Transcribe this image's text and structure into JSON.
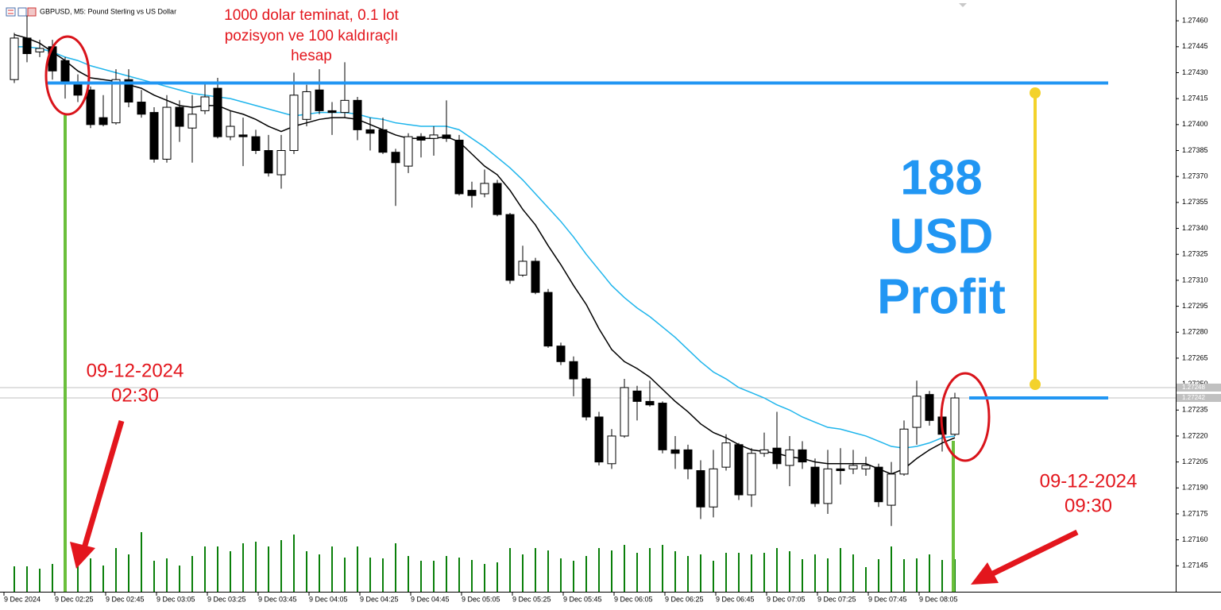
{
  "header": {
    "title": "GBPUSD, M5:  Pound Sterling vs US Dollar"
  },
  "chart_data": {
    "type": "candlestick",
    "categories": [
      "9 Dec 2024",
      null,
      null,
      null,
      "9 Dec 02:25",
      null,
      null,
      null,
      "9 Dec 02:45",
      null,
      null,
      null,
      "9 Dec 03:05",
      null,
      null,
      null,
      "9 Dec 03:25",
      null,
      null,
      null,
      "9 Dec 03:45",
      null,
      null,
      null,
      "9 Dec 04:05",
      null,
      null,
      null,
      "9 Dec 04:25",
      null,
      null,
      null,
      "9 Dec 04:45",
      null,
      null,
      null,
      "9 Dec 05:05",
      null,
      null,
      null,
      "9 Dec 05:25",
      null,
      null,
      null,
      "9 Dec 05:45",
      null,
      null,
      null,
      "9 Dec 06:05",
      null,
      null,
      null,
      "9 Dec 06:25",
      null,
      null,
      null,
      "9 Dec 06:45",
      null,
      null,
      null,
      "9 Dec 07:05",
      null,
      null,
      null,
      "9 Dec 07:25",
      null,
      null,
      null,
      "9 Dec 07:45",
      null,
      null,
      null,
      "9 Dec 08:05",
      null,
      null
    ],
    "open": [
      1.27426,
      1.2745,
      1.27442,
      1.27445,
      1.27437,
      1.27423,
      1.2742,
      1.27404,
      1.27401,
      1.27426,
      1.27413,
      1.27407,
      1.2738,
      1.2741,
      1.27398,
      1.27408,
      1.27421,
      1.27393,
      1.27394,
      1.27393,
      1.27385,
      1.27371,
      1.27385,
      1.27403,
      1.2742,
      1.27408,
      1.27407,
      1.27414,
      1.27397,
      1.27397,
      1.27384,
      1.27376,
      1.27393,
      1.27392,
      1.27394,
      1.27391,
      1.27362,
      1.2736,
      1.27366,
      1.27348,
      1.27313,
      1.27321,
      1.27303,
      1.27272,
      1.27263,
      1.27253,
      1.27231,
      1.27204,
      1.2722,
      1.27246,
      1.2724,
      1.27239,
      1.27212,
      1.27212,
      1.272,
      1.27179,
      1.27202,
      1.27215,
      1.27186,
      1.2721,
      1.27213,
      1.27203,
      1.27212,
      1.27202,
      1.27181,
      1.27201,
      1.27201,
      1.27201,
      1.27202,
      1.2718,
      1.27198,
      1.27225,
      1.27244,
      1.27231,
      1.27221
    ],
    "high": [
      1.27453,
      1.27463,
      1.27449,
      1.27449,
      1.27439,
      1.27429,
      1.27422,
      1.27417,
      1.27432,
      1.27432,
      1.2742,
      1.2741,
      1.27417,
      1.27414,
      1.27417,
      1.27424,
      1.27427,
      1.27408,
      1.27404,
      1.27397,
      1.27394,
      1.27394,
      1.2743,
      1.27423,
      1.27432,
      1.27413,
      1.27436,
      1.27416,
      1.27404,
      1.27404,
      1.27386,
      1.27395,
      1.27395,
      1.27399,
      1.27414,
      1.27394,
      1.27367,
      1.27374,
      1.27368,
      1.27349,
      1.2733,
      1.27323,
      1.27305,
      1.27274,
      1.27266,
      1.27254,
      1.27234,
      1.27224,
      1.27253,
      1.27249,
      1.27252,
      1.2724,
      1.2722,
      1.27215,
      1.27206,
      1.27212,
      1.27221,
      1.27216,
      1.27213,
      1.27222,
      1.27234,
      1.2722,
      1.27217,
      1.27207,
      1.27212,
      1.27213,
      1.27212,
      1.27208,
      1.27204,
      1.27205,
      1.27229,
      1.27252,
      1.27246,
      1.27234,
      1.27245
    ],
    "low": [
      1.27424,
      1.27436,
      1.27439,
      1.27426,
      1.27415,
      1.27413,
      1.27398,
      1.27399,
      1.274,
      1.2741,
      1.27404,
      1.27378,
      1.27378,
      1.2739,
      1.27378,
      1.27406,
      1.27392,
      1.27391,
      1.27376,
      1.27383,
      1.2737,
      1.27363,
      1.27383,
      1.27399,
      1.27406,
      1.27394,
      1.27404,
      1.27391,
      1.27385,
      1.27383,
      1.27353,
      1.27372,
      1.27381,
      1.27382,
      1.2739,
      1.27359,
      1.27352,
      1.27358,
      1.27347,
      1.27308,
      1.27312,
      1.27302,
      1.27271,
      1.27261,
      1.27243,
      1.27229,
      1.27203,
      1.27201,
      1.27219,
      1.27229,
      1.27237,
      1.2721,
      1.27201,
      1.27195,
      1.27172,
      1.27173,
      1.272,
      1.27183,
      1.27179,
      1.27208,
      1.27201,
      1.27191,
      1.27201,
      1.27179,
      1.27175,
      1.27192,
      1.27198,
      1.27197,
      1.27179,
      1.27168,
      1.27197,
      1.27215,
      1.27226,
      1.27211,
      1.2722
    ],
    "close": [
      1.2745,
      1.27441,
      1.27444,
      1.27431,
      1.27425,
      1.27417,
      1.274,
      1.274,
      1.27426,
      1.27413,
      1.27406,
      1.2738,
      1.2741,
      1.27399,
      1.27406,
      1.27416,
      1.27393,
      1.27399,
      1.27393,
      1.27385,
      1.27372,
      1.27385,
      1.27417,
      1.27419,
      1.27408,
      1.27407,
      1.27414,
      1.27397,
      1.27395,
      1.27384,
      1.27378,
      1.27393,
      1.27391,
      1.27394,
      1.27392,
      1.2736,
      1.27359,
      1.27366,
      1.27348,
      1.2731,
      1.27321,
      1.27303,
      1.27272,
      1.27263,
      1.27253,
      1.27231,
      1.27205,
      1.2722,
      1.27248,
      1.2724,
      1.27238,
      1.27212,
      1.2721,
      1.27201,
      1.27179,
      1.27201,
      1.27216,
      1.27186,
      1.2721,
      1.27212,
      1.27204,
      1.27212,
      1.27205,
      1.27181,
      1.27201,
      1.272,
      1.27203,
      1.27203,
      1.27182,
      1.27198,
      1.27224,
      1.27243,
      1.27229,
      1.27221,
      1.27242
    ],
    "volume": [
      32,
      32,
      29,
      35,
      47,
      37,
      42,
      33,
      55,
      47,
      75,
      39,
      42,
      33,
      45,
      57,
      57,
      51,
      61,
      63,
      57,
      65,
      72,
      51,
      47,
      57,
      43,
      57,
      43,
      42,
      61,
      45,
      39,
      39,
      45,
      43,
      40,
      35,
      37,
      55,
      47,
      55,
      52,
      42,
      39,
      45,
      55,
      52,
      59,
      49,
      55,
      59,
      51,
      45,
      47,
      39,
      49,
      49,
      47,
      49,
      55,
      51,
      41,
      47,
      42,
      55,
      47,
      31,
      41,
      57,
      41,
      42,
      47,
      40,
      41
    ],
    "ma": [
      {
        "color": "#000000",
        "values": [
          1.27452,
          1.2745,
          1.27447,
          1.27442,
          1.27437,
          1.27431,
          1.27427,
          1.27426,
          1.27425,
          1.27423,
          1.27421,
          1.27417,
          1.27414,
          1.27411,
          1.2741,
          1.27411,
          1.27411,
          1.27408,
          1.27406,
          1.27403,
          1.27399,
          1.27396,
          1.27399,
          1.27401,
          1.27403,
          1.27404,
          1.27404,
          1.27403,
          1.274,
          1.27397,
          1.27394,
          1.27392,
          1.27392,
          1.27392,
          1.27393,
          1.2739,
          1.27383,
          1.27376,
          1.27371,
          1.27362,
          1.27351,
          1.27342,
          1.2733,
          1.27319,
          1.27307,
          1.27296,
          1.27282,
          1.2727,
          1.27263,
          1.27259,
          1.27254,
          1.27247,
          1.2724,
          1.27234,
          1.27227,
          1.27222,
          1.27219,
          1.27215,
          1.27212,
          1.27211,
          1.2721,
          1.27208,
          1.27207,
          1.27205,
          1.27204,
          1.27204,
          1.27204,
          1.27204,
          1.27201,
          1.27198,
          1.27201,
          1.27207,
          1.27212,
          1.27216,
          1.27219
        ]
      },
      {
        "color": "#1fb5ec",
        "values": [
          1.27445,
          1.27445,
          1.27444,
          1.27442,
          1.27439,
          1.27437,
          1.27434,
          1.27432,
          1.2743,
          1.27428,
          1.27426,
          1.27424,
          1.27422,
          1.2742,
          1.27418,
          1.27417,
          1.27416,
          1.27415,
          1.27413,
          1.27411,
          1.27409,
          1.27407,
          1.27405,
          1.27406,
          1.27407,
          1.27407,
          1.27407,
          1.27406,
          1.27404,
          1.27403,
          1.27401,
          1.274,
          1.27399,
          1.27399,
          1.27399,
          1.27397,
          1.27392,
          1.27387,
          1.27381,
          1.27375,
          1.27368,
          1.2736,
          1.27352,
          1.27344,
          1.27335,
          1.27325,
          1.27316,
          1.27307,
          1.273,
          1.27294,
          1.27289,
          1.27283,
          1.27277,
          1.2727,
          1.27263,
          1.27257,
          1.27253,
          1.27248,
          1.27245,
          1.27242,
          1.27238,
          1.27235,
          1.27231,
          1.27228,
          1.27225,
          1.27224,
          1.27222,
          1.2722,
          1.27217,
          1.27214,
          1.27213,
          1.27214,
          1.27216,
          1.27219,
          1.2722
        ]
      }
    ],
    "ylim": [
      1.2713,
      1.27472
    ],
    "yticks": [
      {
        "value": 1.2746,
        "label": "1.27460"
      },
      1.27445,
      {
        "value": 1.2743,
        "label": "1.27430"
      },
      1.27415,
      {
        "value": 1.274,
        "label": "1.27400"
      },
      1.27385,
      {
        "value": 1.2737,
        "label": "1.27370"
      },
      1.27355,
      {
        "value": 1.2734,
        "label": "1.27340"
      },
      1.27325,
      {
        "value": 1.2731,
        "label": "1.27310"
      },
      1.27295,
      {
        "value": 1.2728,
        "label": "1.27280"
      },
      1.27265,
      {
        "value": 1.2725,
        "label": "1.27250"
      },
      1.27235,
      {
        "value": 1.2722,
        "label": "1.27220"
      },
      1.27205,
      {
        "value": 1.2719,
        "label": "1.27190"
      },
      1.27175,
      {
        "value": 1.2716,
        "label": "1.27160"
      },
      1.27145
    ],
    "price_lines": [
      1.27248,
      1.27242
    ],
    "levels": [
      1.27424,
      1.27242
    ],
    "up_color": "#ffffff",
    "down_color": "#000000",
    "volume_color": "#0a7f0a",
    "level_color": "#2196f3"
  },
  "annotations": {
    "note": [
      "1000 dolar teminat, 0.1 lot",
      "pozisyon ve 100 kaldıraçlı",
      "hesap"
    ],
    "entry": [
      "09-12-2024",
      "02:30"
    ],
    "exit": [
      "09-12-2024",
      "09:30"
    ],
    "profit": [
      "188",
      "USD",
      "Profit"
    ]
  }
}
